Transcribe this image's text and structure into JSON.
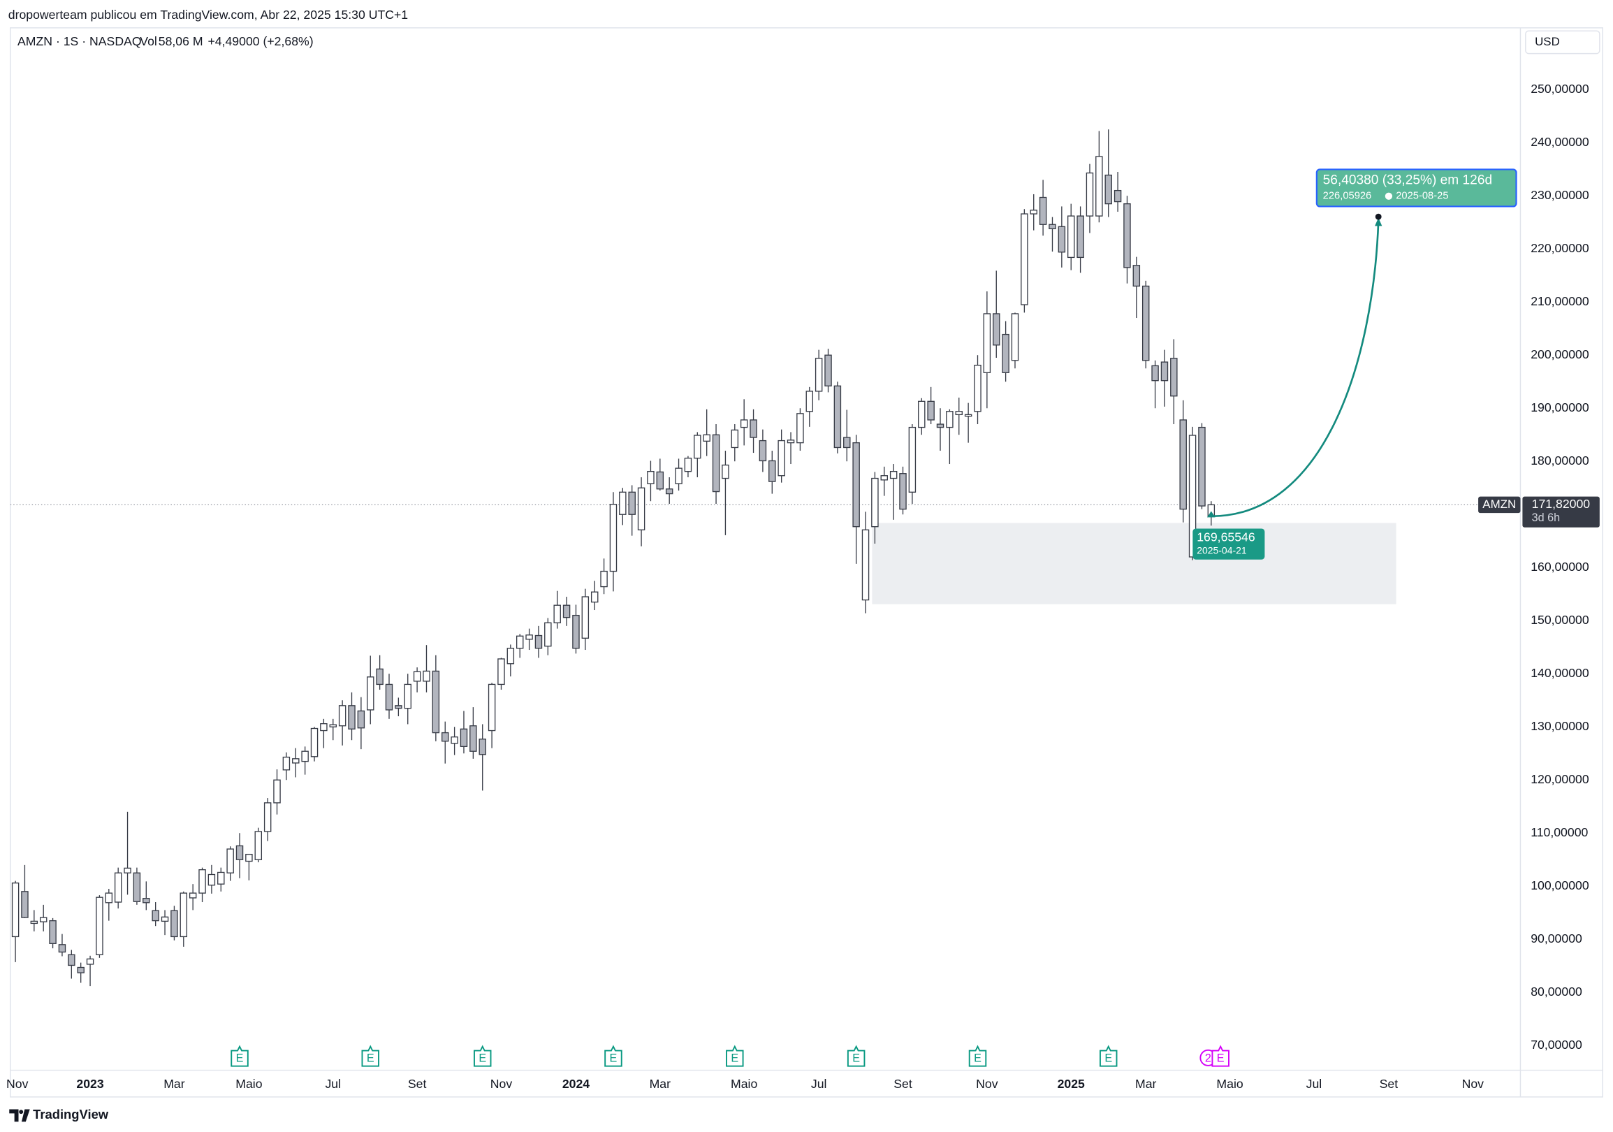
{
  "header": {
    "publisher": "dropowerteam publicou em TradingView.com, Abr 22, 2025 15:30 UTC+1"
  },
  "chart_data": {
    "type": "candlestick",
    "symbol": "AMZN · 1S · NASDAQ",
    "volume_label": "Vol",
    "volume": "58,06 M",
    "change": "+4,49000 (+2,68%)",
    "currency": "USD",
    "up_color": "#ffffff",
    "down_color": "#b2b5be",
    "open": [
      90.5,
      99,
      93,
      93.3,
      93.5,
      89,
      87.1,
      84.7,
      85.3,
      87.1,
      96.9,
      97,
      102.5,
      102.5,
      97.7,
      95.4,
      93.4,
      95.4,
      90.5,
      97.8,
      98.7,
      100.2,
      100.4,
      102.5,
      107.6,
      104.7,
      105,
      110.3,
      115.7,
      121.9,
      123.2,
      123.5,
      124.4,
      129.3,
      130,
      130.2,
      134,
      133,
      133.2,
      140.9,
      138,
      134,
      133.5,
      138.6,
      138.6,
      140.5,
      128.9,
      126.9,
      129.6,
      130.2,
      127.7,
      129.3,
      138,
      141.9,
      144.8,
      146.5,
      147.2,
      145.2,
      149.6,
      152.9,
      151,
      146.7,
      153.5,
      156.4,
      159.3,
      170,
      174.2,
      167.1,
      175.8,
      178,
      174.8,
      175.8,
      178.1,
      180.6,
      183.8,
      185,
      176.8,
      182.6,
      186.4,
      187.8,
      183.9,
      180.1,
      177.3,
      183.5,
      183.5,
      189.4,
      193.2,
      200,
      194.2,
      184.5,
      183.5,
      153.9,
      167.7,
      176.5,
      176.8,
      177.7,
      174.2,
      186.4,
      191.3,
      187,
      186.4,
      188.8,
      188.5,
      189.4,
      196.7,
      207.8,
      203.9,
      199,
      209.5,
      226.6,
      229.7,
      224.6,
      224.2,
      218.4,
      226.2,
      226.2,
      226.2,
      233.9,
      231,
      228.5,
      216.9,
      213,
      198,
      198.7,
      199.4,
      187.8,
      162,
      186.4,
      169.6
    ],
    "high": [
      101,
      104,
      95.5,
      96.5,
      94,
      91,
      88,
      85.6,
      86.9,
      98.3,
      99.5,
      103.5,
      114,
      103.5,
      100.9,
      97,
      95.5,
      96.3,
      99,
      100.4,
      103.5,
      104,
      103.5,
      107.5,
      110,
      106,
      111,
      116.6,
      122,
      125.2,
      126,
      126.3,
      130,
      131.5,
      131.5,
      135,
      136.5,
      135.6,
      143.4,
      143.5,
      140,
      135.5,
      140,
      141.2,
      145.4,
      143.5,
      131,
      130,
      133,
      133.7,
      130.5,
      138.3,
      143,
      145.5,
      147.5,
      148.5,
      149,
      150.5,
      155.6,
      154.5,
      153,
      156,
      157.5,
      161.7,
      174.2,
      175,
      175.5,
      177,
      180.1,
      180.5,
      177,
      180.5,
      181,
      185.5,
      189.8,
      187,
      182,
      187,
      191.7,
      189.8,
      186,
      182,
      186,
      185.5,
      190,
      194,
      201,
      201.2,
      195,
      189.7,
      185,
      170.5,
      178,
      179,
      179.5,
      179,
      187,
      191.9,
      194,
      190,
      189.8,
      192,
      191,
      200,
      212,
      215.9,
      206.4,
      208,
      227.5,
      230.3,
      233,
      226,
      228,
      228.5,
      228,
      236,
      242.2,
      242.5,
      234.5,
      230,
      218.5,
      214,
      199,
      201,
      203,
      191.5,
      186.5,
      187.2,
      172.5
    ],
    "low": [
      85.7,
      94,
      91.5,
      91.5,
      88.3,
      86.8,
      82.6,
      81.8,
      81.2,
      86.5,
      93.5,
      95.8,
      98.4,
      96.5,
      95.5,
      92.5,
      90.8,
      89.8,
      88.6,
      95.5,
      97,
      98.6,
      99,
      101,
      101.5,
      101.1,
      104.5,
      108.5,
      113.5,
      120,
      120.5,
      121,
      123.5,
      126,
      127.5,
      126.5,
      127.5,
      125.8,
      130.5,
      137,
      131.5,
      132,
      130.5,
      136.5,
      136.5,
      127.3,
      123.1,
      124.7,
      125,
      124,
      118,
      126,
      137,
      139.5,
      143,
      144.5,
      143,
      143.5,
      148.5,
      149,
      143.8,
      144.5,
      152,
      155,
      155.5,
      168,
      166,
      164,
      172.5,
      174.5,
      172,
      174.5,
      177,
      177,
      181,
      172,
      166.1,
      180,
      183,
      181.6,
      178,
      173.9,
      176,
      179.5,
      182,
      186.5,
      191.5,
      193,
      181.5,
      180,
      160.7,
      151.4,
      164.5,
      173.5,
      169,
      170,
      172,
      185,
      187,
      182,
      179.5,
      185,
      183.5,
      187,
      190,
      199.5,
      195,
      197.5,
      208,
      223.5,
      222.5,
      219.5,
      216.5,
      216,
      215.5,
      223,
      225,
      226,
      227,
      213.5,
      207,
      197.5,
      190,
      190.3,
      187,
      168.5,
      161.4,
      171,
      167.9
    ],
    "close": [
      100.6,
      94.1,
      93.4,
      94.1,
      89.2,
      87.6,
      85.1,
      83.7,
      86.3,
      97.9,
      98.7,
      102.5,
      103.4,
      97.1,
      96.9,
      93.5,
      94.2,
      90.5,
      98.7,
      98.7,
      103.1,
      102.2,
      102.6,
      107,
      105,
      106,
      110.3,
      115.7,
      120,
      124.3,
      124,
      125.4,
      129.7,
      130.6,
      130.4,
      134,
      129.6,
      129.8,
      139.4,
      138,
      133.2,
      133.5,
      138,
      140.4,
      140.5,
      128.9,
      127.3,
      128.1,
      126.3,
      125.4,
      124.8,
      138,
      142.8,
      144.8,
      147.1,
      147.3,
      144.8,
      149.6,
      152.9,
      150.6,
      144.8,
      154.5,
      155.4,
      159.3,
      171.9,
      174.2,
      170,
      175,
      178.1,
      174.8,
      173.9,
      178.7,
      180.6,
      184.9,
      185,
      174.3,
      179.3,
      185.9,
      187.8,
      184.5,
      180.1,
      176.2,
      183.9,
      184,
      189,
      193.2,
      199.4,
      194.2,
      182.6,
      182.6,
      167.7,
      167.1,
      176.8,
      177.3,
      178.1,
      171,
      186.4,
      191.3,
      187.8,
      186.4,
      189.4,
      189.4,
      188.8,
      198.1,
      207.8,
      201.9,
      196.7,
      207.8,
      226.6,
      227.3,
      224.6,
      223.8,
      219.4,
      226.2,
      218.4,
      234.3,
      237.4,
      228.5,
      228.9,
      216.5,
      213,
      199,
      195.2,
      195.2,
      192.3,
      171,
      184.9,
      171.6,
      171.82
    ],
    "xlim": [
      -0.55,
      161.1
    ],
    "xticks": [
      {
        "value": 0.2,
        "label": "Nov"
      },
      {
        "value": 8,
        "label": "2023"
      },
      {
        "value": 17,
        "label": "Mar"
      },
      {
        "value": 25,
        "label": "Maio"
      },
      {
        "value": 34,
        "label": "Jul"
      },
      {
        "value": 43,
        "label": "Set"
      },
      {
        "value": 52,
        "label": "Nov"
      },
      {
        "value": 60,
        "label": "2024"
      },
      {
        "value": 69,
        "label": "Mar"
      },
      {
        "value": 78,
        "label": "Maio"
      },
      {
        "value": 86,
        "label": "Jul"
      },
      {
        "value": 95,
        "label": "Set"
      },
      {
        "value": 104,
        "label": "Nov"
      },
      {
        "value": 113,
        "label": "2025"
      },
      {
        "value": 121,
        "label": "Mar"
      },
      {
        "value": 130,
        "label": "Maio"
      },
      {
        "value": 139,
        "label": "Jul"
      },
      {
        "value": 147,
        "label": "Set"
      },
      {
        "value": 156,
        "label": "Nov"
      }
    ],
    "ylim": [
      65.35,
      261.63
    ],
    "yticks": [
      {
        "value": 70,
        "label": "70,00000"
      },
      {
        "value": 80,
        "label": "80,00000"
      },
      {
        "value": 90,
        "label": "90,00000"
      },
      {
        "value": 100,
        "label": "100,00000"
      },
      {
        "value": 110,
        "label": "110,00000"
      },
      {
        "value": 120,
        "label": "120,00000"
      },
      {
        "value": 130,
        "label": "130,00000"
      },
      {
        "value": 140,
        "label": "140,00000"
      },
      {
        "value": 150,
        "label": "150,00000"
      },
      {
        "value": 160,
        "label": "160,00000"
      },
      {
        "value": 170,
        "label": "170,00000"
      },
      {
        "value": 180,
        "label": "180,00000"
      },
      {
        "value": 190,
        "label": "190,00000"
      },
      {
        "value": 200,
        "label": "200,00000"
      },
      {
        "value": 210,
        "label": "210,00000"
      },
      {
        "value": 220,
        "label": "220,00000"
      },
      {
        "value": 230,
        "label": "230,00000"
      },
      {
        "value": 240,
        "label": "240,00000"
      },
      {
        "value": 250,
        "label": "250,00000"
      }
    ],
    "grid": false,
    "last": {
      "name": "AMZN",
      "value": 171.82,
      "label": "171,82000",
      "countdown": "3d 6h"
    },
    "zone": {
      "x": [
        91.7,
        147.8
      ],
      "y": [
        153.1,
        168.4
      ],
      "color": "#eceef1"
    },
    "projection": {
      "text": "56,40380 (33,25%) em 126d",
      "color": "#138a7e",
      "start": {
        "x": 128,
        "y": 169.65546,
        "label": "169,65546",
        "date": "2025-04-21"
      },
      "end": {
        "x": 145.9,
        "y": 226.05926,
        "label": "226,05926",
        "date": "2025-08-25"
      }
    },
    "earnings": {
      "label": "E",
      "x": [
        24,
        38,
        50,
        64,
        77,
        90,
        103,
        117
      ],
      "color": "#089981"
    },
    "upcoming_earnings": {
      "label": "E",
      "x": 129,
      "color": "#d500f9"
    },
    "split": {
      "label": "2",
      "x": 128,
      "color": "#d500f9"
    }
  },
  "footer": {
    "brand": "TradingView"
  }
}
